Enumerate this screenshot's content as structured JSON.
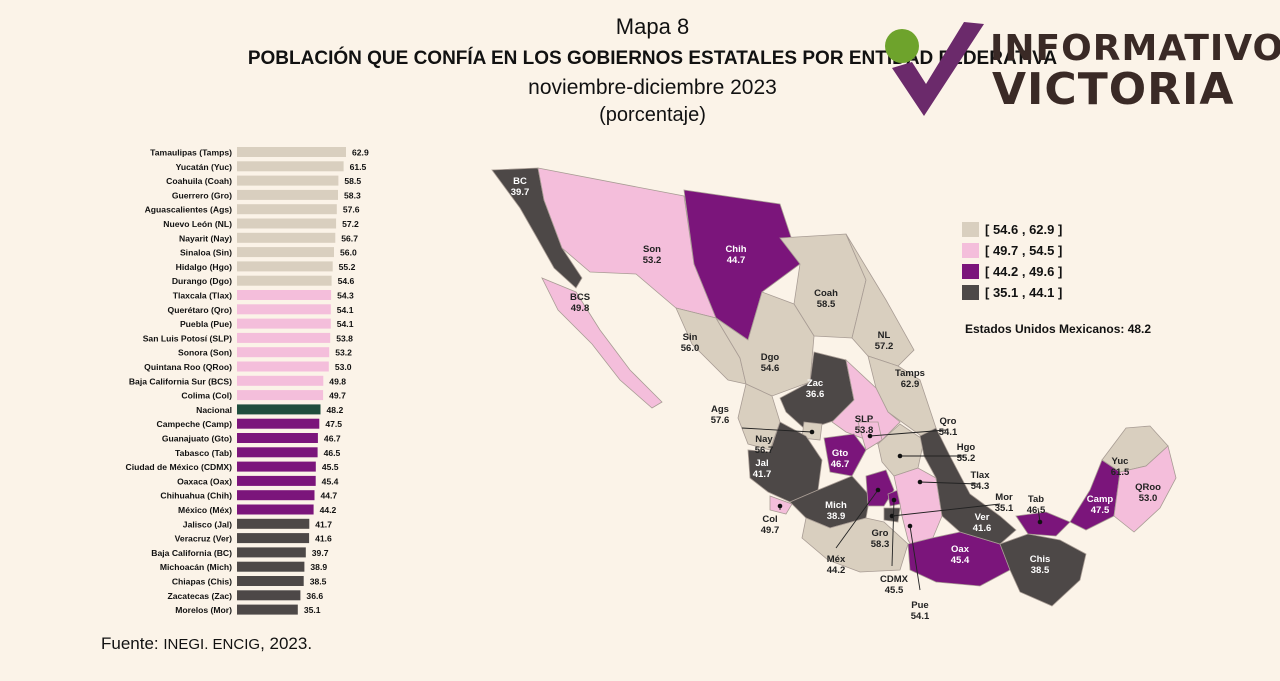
{
  "header": {
    "map_number": "Mapa 8",
    "title": "POBLACIÓN QUE CONFÍA EN LOS GOBIERNOS ESTATALES POR ENTIDAD FEDERATIVA",
    "period": "noviembre-diciembre 2023",
    "unit": "(porcentaje)"
  },
  "logo": {
    "line1": "INFORMATIVO",
    "line2": "VICTORIA",
    "mark_colors": [
      "#6b2a6b",
      "#6ea32c"
    ]
  },
  "legend": {
    "items": [
      {
        "label": "[ 54.6 , 62.9 ]",
        "color": "#d9cfbf"
      },
      {
        "label": "[ 49.7 , 54.5 ]",
        "color": "#f4bedb"
      },
      {
        "label": "[ 44.2 , 49.6 ]",
        "color": "#7b157b"
      },
      {
        "label": "[ 35.1 , 44.1 ]",
        "color": "#4d4847"
      }
    ]
  },
  "national_label": "Estados Unidos Mexicanos:  48.2",
  "source": {
    "prefix": "Fuente: ",
    "org": "INEGI. ENCIG",
    "suffix": ", 2023."
  },
  "chart_data": {
    "type": "bar",
    "orientation": "horizontal",
    "xlim": [
      0,
      65
    ],
    "categories": [
      "Tamaulipas (Tamps)",
      "Yucatán (Yuc)",
      "Coahuila (Coah)",
      "Guerrero (Gro)",
      "Aguascalientes (Ags)",
      "Nuevo León (NL)",
      "Nayarit (Nay)",
      "Sinaloa (Sin)",
      "Hidalgo (Hgo)",
      "Durango (Dgo)",
      "Tlaxcala (Tlax)",
      "Querétaro (Qro)",
      "Puebla (Pue)",
      "San Luis Potosí (SLP)",
      "Sonora (Son)",
      "Quintana Roo (QRoo)",
      "Baja California Sur (BCS)",
      "Colima (Col)",
      "Nacional",
      "Campeche (Camp)",
      "Guanajuato (Gto)",
      "Tabasco (Tab)",
      "Ciudad de México (CDMX)",
      "Oaxaca (Oax)",
      "Chihuahua (Chih)",
      "México (Méx)",
      "Jalisco (Jal)",
      "Veracruz (Ver)",
      "Baja California (BC)",
      "Michoacán (Mich)",
      "Chiapas (Chis)",
      "Zacatecas (Zac)",
      "Morelos (Mor)"
    ],
    "values": [
      62.9,
      61.5,
      58.5,
      58.3,
      57.6,
      57.2,
      56.7,
      56.0,
      55.2,
      54.6,
      54.3,
      54.1,
      54.1,
      53.8,
      53.2,
      53.0,
      49.8,
      49.7,
      48.2,
      47.5,
      46.7,
      46.5,
      45.5,
      45.4,
      44.7,
      44.2,
      41.7,
      41.6,
      39.7,
      38.9,
      38.5,
      36.6,
      35.1
    ],
    "value_labels": [
      "62.9",
      "61.5",
      "58.5",
      "58.3",
      "57.6",
      "57.2",
      "56.7",
      "56.0",
      "55.2",
      "54.6",
      "54.3",
      "54.1",
      "54.1",
      "53.8",
      "53.2",
      "53.0",
      "49.8",
      "49.7",
      "48.2",
      "47.5",
      "46.7",
      "46.5",
      "45.5",
      "45.4",
      "44.7",
      "44.2",
      "41.7",
      "41.6",
      "39.7",
      "38.9",
      "38.5",
      "36.6",
      "35.1"
    ],
    "colors": {
      "high": "#d9cfbf",
      "mid_high": "#f4bedb",
      "mid_low": "#7b157b",
      "low": "#4d4847",
      "national": "#1f4e3d"
    }
  },
  "map_data": {
    "type": "choropleth",
    "states": [
      {
        "abbr": "BC",
        "value": "39.7"
      },
      {
        "abbr": "BCS",
        "value": "49.8"
      },
      {
        "abbr": "Son",
        "value": "53.2"
      },
      {
        "abbr": "Chih",
        "value": "44.7"
      },
      {
        "abbr": "Coah",
        "value": "58.5"
      },
      {
        "abbr": "NL",
        "value": "57.2"
      },
      {
        "abbr": "Tamps",
        "value": "62.9"
      },
      {
        "abbr": "Sin",
        "value": "56.0"
      },
      {
        "abbr": "Dgo",
        "value": "54.6"
      },
      {
        "abbr": "Zac",
        "value": "36.6"
      },
      {
        "abbr": "SLP",
        "value": "53.8"
      },
      {
        "abbr": "Ags",
        "value": "57.6"
      },
      {
        "abbr": "Nay",
        "value": "56.7"
      },
      {
        "abbr": "Jal",
        "value": "41.7"
      },
      {
        "abbr": "Gto",
        "value": "46.7"
      },
      {
        "abbr": "Qro",
        "value": "54.1"
      },
      {
        "abbr": "Hgo",
        "value": "55.2"
      },
      {
        "abbr": "Col",
        "value": "49.7"
      },
      {
        "abbr": "Mich",
        "value": "38.9"
      },
      {
        "abbr": "Méx",
        "value": "44.2"
      },
      {
        "abbr": "CDMX",
        "value": "45.5"
      },
      {
        "abbr": "Tlax",
        "value": "54.3"
      },
      {
        "abbr": "Mor",
        "value": "35.1"
      },
      {
        "abbr": "Pue",
        "value": "54.1"
      },
      {
        "abbr": "Gro",
        "value": "58.3"
      },
      {
        "abbr": "Oax",
        "value": "45.4"
      },
      {
        "abbr": "Ver",
        "value": "41.6"
      },
      {
        "abbr": "Tab",
        "value": "46.5"
      },
      {
        "abbr": "Chis",
        "value": "38.5"
      },
      {
        "abbr": "Camp",
        "value": "47.5"
      },
      {
        "abbr": "Yuc",
        "value": "61.5"
      },
      {
        "abbr": "QRoo",
        "value": "53.0"
      }
    ]
  }
}
